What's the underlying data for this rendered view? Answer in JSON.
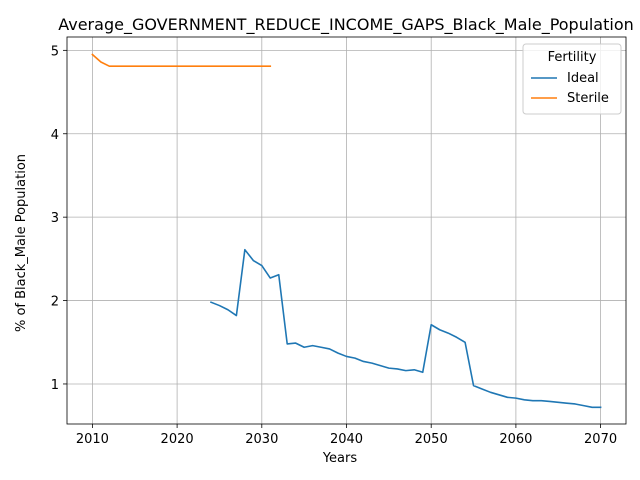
{
  "chart_data": {
    "type": "line",
    "title": "Average_GOVERNMENT_REDUCE_INCOME_GAPS_Black_Male_Population",
    "xlabel": "Years",
    "ylabel": "% of Black_Male Population",
    "xlim": [
      2007,
      2073
    ],
    "ylim": [
      0.52,
      5.16
    ],
    "xticks": [
      2010,
      2020,
      2030,
      2040,
      2050,
      2060,
      2070
    ],
    "yticks": [
      1,
      2,
      3,
      4,
      5
    ],
    "grid": true,
    "legend": {
      "title": "Fertility",
      "placement": "top-right"
    },
    "series": [
      {
        "name": "Ideal",
        "color": "#1f77b4",
        "x": [
          2024,
          2025,
          2026,
          2027,
          2028,
          2029,
          2030,
          2031,
          2032,
          2033,
          2034,
          2035,
          2036,
          2037,
          2038,
          2039,
          2040,
          2041,
          2042,
          2043,
          2044,
          2045,
          2046,
          2047,
          2048,
          2049,
          2050,
          2051,
          2052,
          2053,
          2054,
          2055,
          2056,
          2057,
          2058,
          2059,
          2060,
          2061,
          2062,
          2063,
          2064,
          2065,
          2066,
          2067,
          2068,
          2069,
          2070
        ],
        "y": [
          1.98,
          1.94,
          1.89,
          1.82,
          2.61,
          2.48,
          2.42,
          2.27,
          2.31,
          1.48,
          1.49,
          1.44,
          1.46,
          1.44,
          1.42,
          1.37,
          1.33,
          1.31,
          1.27,
          1.25,
          1.22,
          1.19,
          1.18,
          1.16,
          1.17,
          1.14,
          1.71,
          1.65,
          1.61,
          1.56,
          1.5,
          0.98,
          0.94,
          0.9,
          0.87,
          0.84,
          0.83,
          0.81,
          0.8,
          0.8,
          0.79,
          0.78,
          0.77,
          0.76,
          0.74,
          0.72,
          0.72
        ]
      },
      {
        "name": "Sterile",
        "color": "#ff7f0e",
        "x": [
          2010,
          2011,
          2012,
          2013,
          2014,
          2015,
          2016,
          2017,
          2018,
          2019,
          2020,
          2021,
          2022,
          2023,
          2024,
          2025,
          2026,
          2027,
          2028,
          2029,
          2030,
          2031
        ],
        "y": [
          4.95,
          4.86,
          4.81,
          4.81,
          4.81,
          4.81,
          4.81,
          4.81,
          4.81,
          4.81,
          4.81,
          4.81,
          4.81,
          4.81,
          4.81,
          4.81,
          4.81,
          4.81,
          4.81,
          4.81,
          4.81,
          4.81
        ]
      }
    ]
  }
}
